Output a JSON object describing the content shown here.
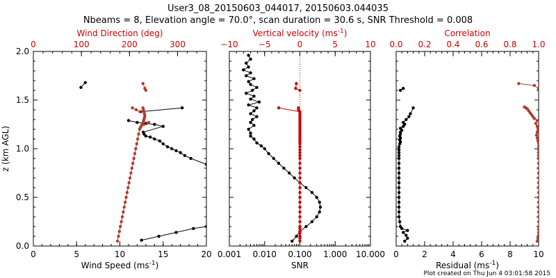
{
  "title_line1": "User3_08_20150603_044017, 20150603.044035",
  "title_line2": "Nbeams = 8, Elevation angle = 70.0°, scan duration = 30.6 s, SNR Threshold = 0.008",
  "footer": "Plot created on Thu Jun  4 03:01:58 2015",
  "colors": {
    "black": "#000000",
    "red": "#cc0000",
    "brown": "#b03a2e"
  },
  "chart_data": [
    {
      "type": "line",
      "ylabel": "z (km AGL)",
      "ylim": [
        0,
        2.0
      ],
      "yticks": [
        "0.0",
        "0.5",
        "1.0",
        "1.5",
        "2.0"
      ],
      "bottom_axis": {
        "label": "Wind Speed (ms",
        "label_sup": "-1",
        "label_end": ")",
        "range": [
          0,
          20
        ],
        "ticks": [
          "0",
          "5",
          "10",
          "15",
          "20"
        ],
        "tick_values": [
          0,
          5,
          10,
          15,
          20
        ]
      },
      "top_axis": {
        "label": "Wind Direction (deg)",
        "range": [
          0,
          360
        ],
        "ticks": [
          "0",
          "100",
          "200",
          "300"
        ],
        "tick_values": [
          0,
          100,
          200,
          300
        ]
      },
      "series": [
        {
          "axis": "bottom",
          "color": "black",
          "line": true,
          "x": [
            12.5,
            14.5,
            16.5,
            18.5,
            20.0,
            null,
            20.0,
            18.2,
            17.5,
            17.0,
            16.5,
            16.0,
            15.5,
            15.0,
            14.6,
            14.0,
            13.5,
            13.0,
            12.8,
            12.7,
            15.0,
            14.0,
            13.0,
            12.0,
            11.0,
            null,
            12.4,
            17.2,
            null,
            5.5,
            6.0
          ],
          "y": [
            0.06,
            0.1,
            0.14,
            0.18,
            0.2,
            null,
            0.84,
            0.9,
            0.93,
            0.96,
            0.98,
            1.0,
            1.02,
            1.05,
            1.08,
            1.1,
            1.12,
            1.13,
            1.15,
            1.17,
            1.23,
            1.25,
            1.26,
            1.27,
            1.29,
            null,
            1.38,
            1.42,
            null,
            1.63,
            1.68
          ]
        },
        {
          "axis": "top",
          "color": "brown",
          "line": true,
          "x": [
            175,
            177,
            179,
            181,
            183,
            185,
            187,
            189,
            191,
            193,
            195,
            197,
            199,
            201,
            203,
            205,
            207,
            209,
            211,
            213,
            215,
            217,
            219,
            221,
            223,
            225,
            227,
            229,
            230,
            231,
            232,
            231,
            230,
            229,
            228,
            null,
            230,
            240,
            null,
            206,
            214,
            222,
            null,
            228,
            232,
            234
          ],
          "y": [
            0.05,
            0.1,
            0.15,
            0.2,
            0.25,
            0.3,
            0.35,
            0.4,
            0.45,
            0.5,
            0.55,
            0.6,
            0.65,
            0.7,
            0.75,
            0.8,
            0.85,
            0.9,
            0.95,
            1.0,
            1.05,
            1.1,
            1.15,
            1.2,
            1.22,
            1.24,
            1.26,
            1.28,
            1.3,
            1.32,
            1.34,
            1.36,
            1.38,
            1.4,
            1.42,
            null,
            1.25,
            1.27,
            null,
            1.42,
            1.4,
            1.38,
            null,
            1.67,
            1.62,
            1.6
          ]
        }
      ]
    },
    {
      "type": "line",
      "ylim": [
        0,
        2.0
      ],
      "xscale": "log",
      "bottom_axis": {
        "label": "SNR",
        "range": [
          0.001,
          10
        ],
        "ticks": [
          "0.001",
          "0.010",
          "0.100",
          "1.000",
          "10.000"
        ],
        "tick_values": [
          0.001,
          0.01,
          0.1,
          1,
          10
        ]
      },
      "top_axis": {
        "label": "Vertical velocity (ms",
        "label_sup": "-1",
        "label_end": ")",
        "range": [
          -10,
          10
        ],
        "ticks": [
          "−10",
          "−5",
          "0",
          "5",
          "10"
        ],
        "tick_values": [
          -10,
          -5,
          0,
          5,
          10
        ]
      },
      "zero_line": 0,
      "series": [
        {
          "axis": "bottom",
          "color": "black",
          "line": true,
          "x": [
            0.06,
            0.08,
            0.1,
            0.15,
            0.22,
            0.3,
            0.36,
            0.38,
            0.36,
            0.3,
            0.22,
            0.15,
            0.1,
            0.07,
            0.05,
            0.035,
            0.025,
            0.018,
            0.013,
            0.01,
            0.008,
            0.006,
            0.005,
            0.004,
            0.004,
            0.0035,
            0.005,
            0.004,
            0.0045,
            0.006,
            0.004,
            0.005,
            0.006,
            0.0035,
            0.007,
            0.004,
            0.005,
            0.003,
            0.0045,
            0.006,
            0.004,
            0.0035,
            0.005,
            0.003,
            0.004,
            0.0025,
            0.0035,
            0.003,
            0.004,
            0.0035
          ],
          "y": [
            0.05,
            0.1,
            0.15,
            0.2,
            0.25,
            0.3,
            0.35,
            0.4,
            0.45,
            0.5,
            0.55,
            0.6,
            0.65,
            0.7,
            0.75,
            0.8,
            0.85,
            0.9,
            0.95,
            1.0,
            1.03,
            1.06,
            1.1,
            1.13,
            1.16,
            1.2,
            1.24,
            1.27,
            1.3,
            1.33,
            1.36,
            1.39,
            1.42,
            1.45,
            1.48,
            1.51,
            1.54,
            1.57,
            1.6,
            1.63,
            1.66,
            1.69,
            1.72,
            1.75,
            1.78,
            1.81,
            1.84,
            1.88,
            1.92,
            1.96
          ]
        },
        {
          "axis": "top",
          "color": "red",
          "line": true,
          "x": [
            0,
            0,
            0,
            0,
            0,
            0,
            0,
            0,
            0,
            0,
            0,
            0,
            0,
            0,
            0,
            0,
            0,
            0,
            0,
            0,
            0,
            0,
            0,
            0,
            0,
            0,
            0,
            0,
            0,
            0,
            0,
            0,
            0,
            0,
            0,
            0,
            0,
            0,
            0,
            0,
            0,
            0,
            0,
            -0.2,
            -0.2,
            null,
            -3.0,
            0,
            null,
            -0.5,
            -0.6,
            0
          ],
          "y": [
            0.05,
            0.08,
            0.1,
            0.13,
            0.15,
            0.18,
            0.2,
            0.25,
            0.3,
            0.35,
            0.4,
            0.45,
            0.5,
            0.55,
            0.6,
            0.65,
            0.7,
            0.75,
            0.8,
            0.85,
            0.9,
            0.93,
            0.96,
            0.99,
            1.02,
            1.05,
            1.07,
            1.09,
            1.11,
            1.13,
            1.15,
            1.17,
            1.19,
            1.21,
            1.23,
            1.25,
            1.27,
            1.29,
            1.31,
            1.33,
            1.34,
            1.36,
            1.38,
            1.4,
            1.42,
            null,
            1.42,
            1.38,
            null,
            1.67,
            1.62,
            1.6
          ]
        }
      ]
    },
    {
      "type": "line",
      "ylim": [
        0,
        2.0
      ],
      "bottom_axis": {
        "label": "Residual (ms",
        "label_sup": "-1",
        "label_end": ")",
        "range": [
          0,
          10
        ],
        "ticks": [
          "0",
          "2",
          "4",
          "6",
          "8",
          "10"
        ],
        "tick_values": [
          0,
          2,
          4,
          6,
          8,
          10
        ]
      },
      "top_axis": {
        "label": "Correlation",
        "range": [
          0,
          1.0
        ],
        "ticks": [
          "0.0",
          "0.2",
          "0.4",
          "0.6",
          "0.8",
          "1.0"
        ],
        "tick_values": [
          0,
          0.2,
          0.4,
          0.6,
          0.8,
          1.0
        ]
      },
      "series": [
        {
          "axis": "bottom",
          "color": "black",
          "line": true,
          "x": [
            0.6,
            0.8,
            0.7,
            0.5,
            0.8,
            0.4,
            0.3,
            0.25,
            0.2,
            0.2,
            0.2,
            0.2,
            0.2,
            0.2,
            0.2,
            0.2,
            0.2,
            0.2,
            0.2,
            0.2,
            0.2,
            0.2,
            0.2,
            0.2,
            0.2,
            0.25,
            0.3,
            0.25,
            0.3,
            0.25,
            0.3,
            0.3,
            0.4,
            0.3,
            0.5,
            0.6,
            0.5,
            0.7,
            0.9,
            1.0,
            1.2,
            null,
            0.3,
            0.5
          ],
          "y": [
            0.05,
            0.08,
            0.11,
            0.14,
            0.16,
            0.18,
            0.2,
            0.25,
            0.3,
            0.35,
            0.4,
            0.45,
            0.5,
            0.55,
            0.6,
            0.65,
            0.7,
            0.75,
            0.8,
            0.85,
            0.9,
            0.93,
            0.96,
            0.99,
            1.02,
            1.05,
            1.07,
            1.09,
            1.11,
            1.13,
            1.15,
            1.17,
            1.19,
            1.21,
            1.23,
            1.25,
            1.27,
            1.3,
            1.33,
            1.36,
            1.42,
            null,
            1.6,
            1.62
          ]
        },
        {
          "axis": "top",
          "color": "brown",
          "line": true,
          "x": [
            0.99,
            0.995,
            1.0,
            1.0,
            1.0,
            1.0,
            1.0,
            1.0,
            1.0,
            1.0,
            1.0,
            1.0,
            1.0,
            1.0,
            1.0,
            1.0,
            1.0,
            1.0,
            1.0,
            1.0,
            1.0,
            1.0,
            1.0,
            1.0,
            1.0,
            0.995,
            0.99,
            0.985,
            0.99,
            0.995,
            0.99,
            0.98,
            0.99,
            0.97,
            0.96,
            0.95,
            0.94,
            0.93,
            0.92,
            0.91,
            0.9,
            null,
            1.0,
            0.97,
            0.86
          ],
          "y": [
            0.05,
            0.08,
            0.11,
            0.14,
            0.17,
            0.2,
            0.25,
            0.3,
            0.35,
            0.4,
            0.45,
            0.5,
            0.55,
            0.6,
            0.65,
            0.7,
            0.75,
            0.8,
            0.85,
            0.9,
            0.93,
            0.96,
            0.99,
            1.02,
            1.05,
            1.08,
            1.11,
            1.14,
            1.17,
            1.2,
            1.23,
            1.26,
            1.29,
            1.31,
            1.33,
            1.35,
            1.37,
            1.39,
            1.41,
            1.42,
            1.43,
            null,
            1.62,
            1.65,
            1.67
          ]
        }
      ]
    }
  ]
}
